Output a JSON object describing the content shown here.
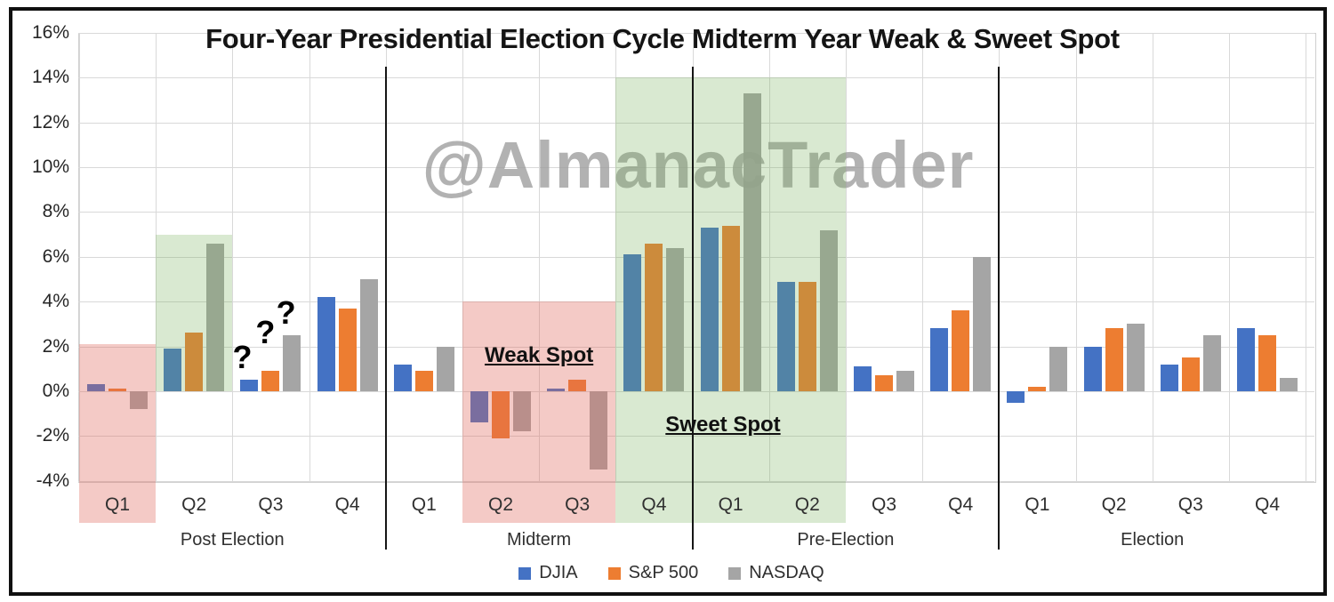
{
  "chart_data": {
    "type": "bar",
    "title": "Four-Year Presidential Election Cycle Midterm Year Weak & Sweet Spot",
    "watermark": "@AlmanacTrader",
    "y_axis": {
      "min": -4,
      "max": 16,
      "step": 2,
      "tick_suffix": "%",
      "grid": true,
      "ticks": [
        "16%",
        "14%",
        "12%",
        "10%",
        "8%",
        "6%",
        "4%",
        "2%",
        "0%",
        "-2%",
        "-4%"
      ]
    },
    "categories": [
      "Q1",
      "Q2",
      "Q3",
      "Q4",
      "Q1",
      "Q2",
      "Q3",
      "Q4",
      "Q1",
      "Q2",
      "Q3",
      "Q4",
      "Q1",
      "Q2",
      "Q3",
      "Q4"
    ],
    "sections": [
      {
        "label": "Post Election",
        "from": 0,
        "to": 3
      },
      {
        "label": "Midterm",
        "from": 4,
        "to": 7
      },
      {
        "label": "Pre-Election",
        "from": 8,
        "to": 11
      },
      {
        "label": "Election",
        "from": 12,
        "to": 15
      }
    ],
    "series": [
      {
        "name": "DJIA",
        "color": "#4472C4",
        "values": [
          0.3,
          1.9,
          0.5,
          4.2,
          1.2,
          -1.4,
          0.1,
          6.1,
          7.3,
          4.9,
          1.1,
          2.8,
          -0.5,
          2.0,
          1.2,
          2.8
        ]
      },
      {
        "name": "S&P 500",
        "color": "#ED7D31",
        "values": [
          0.1,
          2.6,
          0.9,
          3.7,
          0.9,
          -2.1,
          0.5,
          6.6,
          7.4,
          4.9,
          0.7,
          3.6,
          0.2,
          2.8,
          1.5,
          2.5
        ]
      },
      {
        "name": "NASDAQ",
        "color": "#A5A5A5",
        "values": [
          -0.8,
          6.6,
          2.5,
          5.0,
          2.0,
          -1.8,
          -3.5,
          6.4,
          13.3,
          7.2,
          0.9,
          6.0,
          2.0,
          3.0,
          2.5,
          0.6
        ]
      }
    ],
    "legend": [
      {
        "label": "DJIA",
        "color": "#4472C4"
      },
      {
        "label": "S&P 500",
        "color": "#ED7D31"
      },
      {
        "label": "NASDAQ",
        "color": "#A5A5A5"
      }
    ],
    "legend_position": "bottom-center",
    "highlight_colors": {
      "weak": "rgba(224,102,93,0.35)",
      "sweet": "rgba(118,175,88,0.28)"
    },
    "highlights": [
      {
        "name": "post-election-q1-weak",
        "kind": "weak",
        "from": 0,
        "to": 0,
        "top": 2.1,
        "bottom": "below-axis"
      },
      {
        "name": "post-election-q2-sweet",
        "kind": "sweet",
        "from": 1,
        "to": 1,
        "top": 7.0,
        "bottom": 0
      },
      {
        "name": "midterm-weak-spot",
        "kind": "weak",
        "from": 5,
        "to": 6,
        "top": 4.0,
        "bottom": "below-axis"
      },
      {
        "name": "pre-election-sweet-spot",
        "kind": "sweet",
        "from": 7,
        "to": 9,
        "top": 14.0,
        "bottom": "below-axis"
      }
    ],
    "annotations": {
      "weak_spot": {
        "text": "Weak Spot",
        "group": 5.5,
        "value": 1.6
      },
      "sweet_spot": {
        "text": "Sweet Spot",
        "group": 7.9,
        "value": -1.5
      },
      "question_marks": [
        {
          "text": "?",
          "group": 1.63,
          "value": 1.5
        },
        {
          "text": "?",
          "group": 1.93,
          "value": 2.6
        },
        {
          "text": "?",
          "group": 2.2,
          "value": 3.5
        }
      ]
    }
  }
}
